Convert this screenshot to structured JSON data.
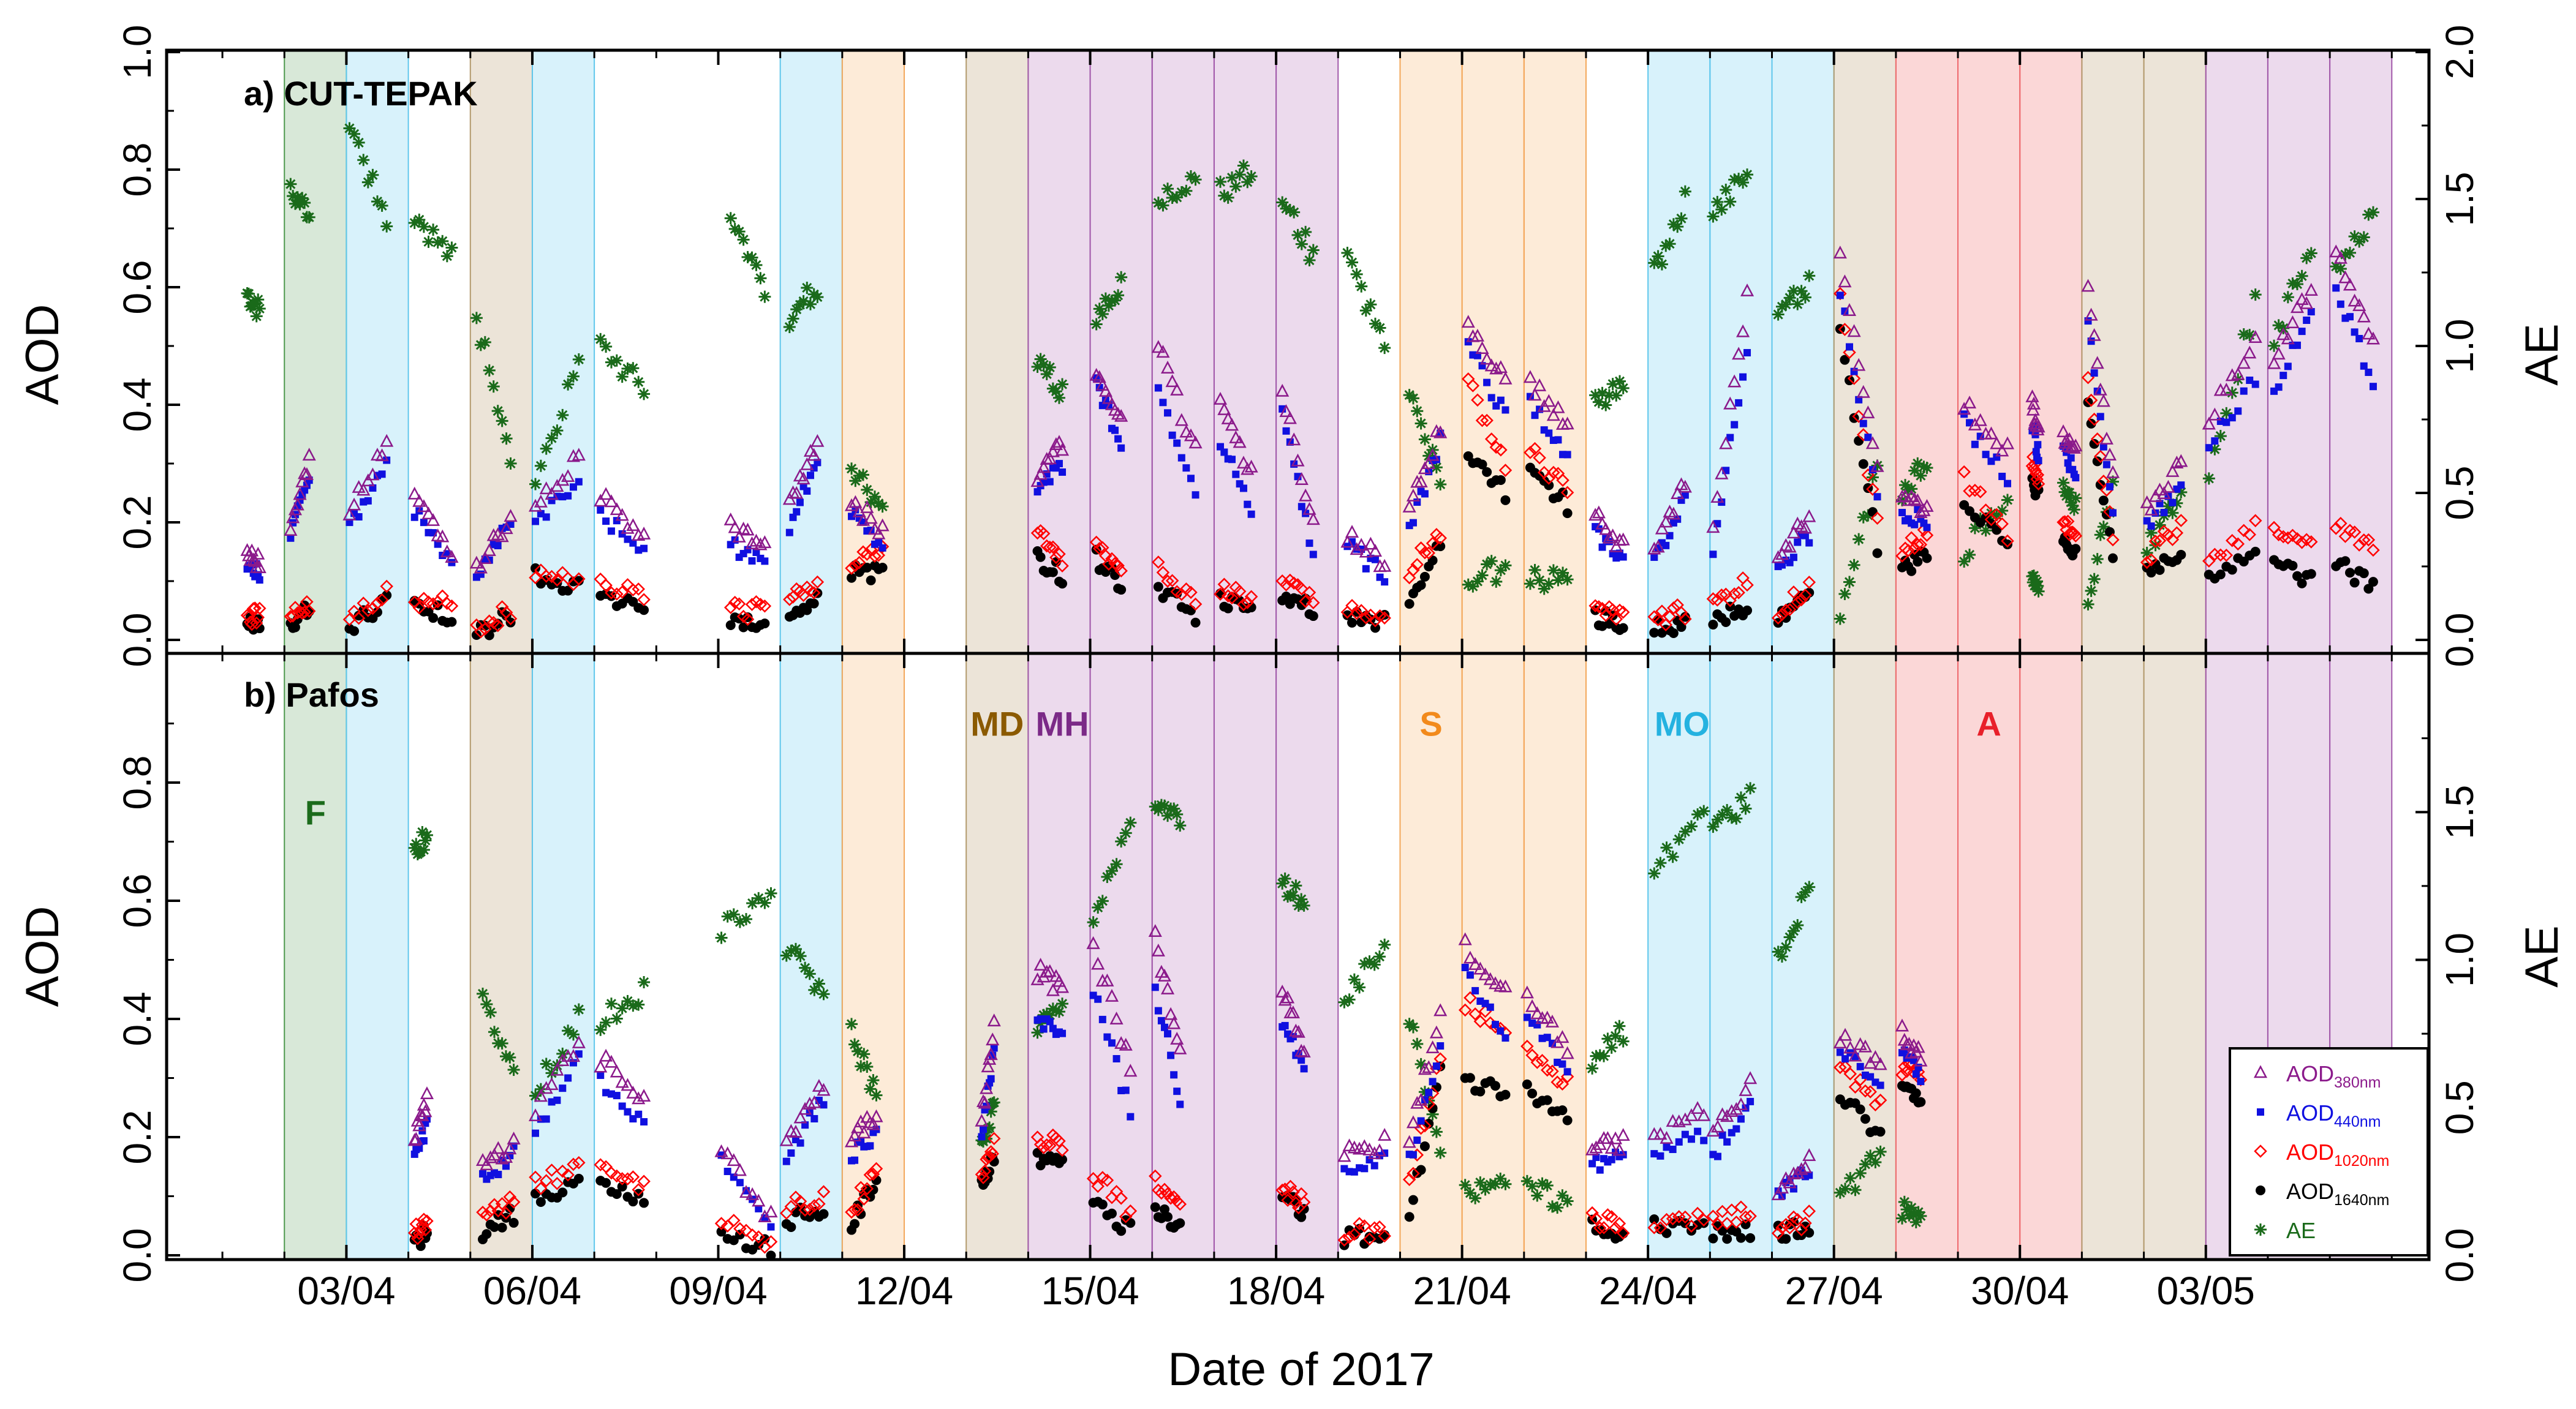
{
  "chart_data": {
    "type": "scatter",
    "xlabel": "Date of 2017",
    "x_ticks": [
      "03/04",
      "06/04",
      "09/04",
      "12/04",
      "15/04",
      "18/04",
      "21/04",
      "24/04",
      "27/04",
      "30/04",
      "03/05"
    ],
    "x_tick_days": [
      3,
      6,
      9,
      12,
      15,
      18,
      21,
      24,
      27,
      30,
      33
    ],
    "x_range_days": [
      0.1,
      36.6
    ],
    "left_axis": {
      "label": "AOD",
      "range": [
        0,
        1.0
      ],
      "ticks": [
        "0.0",
        "0.2",
        "0.4",
        "0.6",
        "0.8",
        "1.0"
      ]
    },
    "right_axis": {
      "label": "AE",
      "range": [
        0,
        2.0
      ],
      "ticks": [
        "0.0",
        "0.5",
        "1.0",
        "1.5",
        "2.0"
      ]
    },
    "lower_left_ticks": [
      "0.0",
      "0.2",
      "0.4",
      "0.6",
      "0.8"
    ],
    "lower_right_ticks": [
      "0.0",
      "0.5",
      "1.0",
      "1.5"
    ],
    "panels": [
      {
        "title": "a) CUT-TEPAK"
      },
      {
        "title": "b) Pafos"
      }
    ],
    "categories": [
      {
        "code": "F",
        "name": "F",
        "color": "#1b6b1b",
        "fill": "#d8e8d8",
        "edge": "#4e9a4e"
      },
      {
        "code": "MO",
        "name": "MO",
        "color": "#24b2e0",
        "fill": "#d8f2fb",
        "edge": "#5fc7ec"
      },
      {
        "code": "MD",
        "name": "MD",
        "color": "#8b5a00",
        "fill": "#ece4d8",
        "edge": "#b39a6e"
      },
      {
        "code": "S",
        "name": "S",
        "color": "#f28a1c",
        "fill": "#fdebd8",
        "edge": "#f3a75a"
      },
      {
        "code": "MH",
        "name": "MH",
        "color": "#7b2a87",
        "fill": "#ecdaed",
        "edge": "#a25aab"
      },
      {
        "code": "A",
        "name": "A",
        "color": "#e8202a",
        "fill": "#fbd7d7",
        "edge": "#ef6b6f"
      }
    ],
    "bands": [
      {
        "start": 2.0,
        "end": 3.0,
        "type": "F"
      },
      {
        "start": 3.0,
        "end": 4.0,
        "type": "MO"
      },
      {
        "start": 5.0,
        "end": 6.0,
        "type": "MD"
      },
      {
        "start": 6.0,
        "end": 7.0,
        "type": "MO"
      },
      {
        "start": 10.0,
        "end": 11.0,
        "type": "MO"
      },
      {
        "start": 11.0,
        "end": 12.0,
        "type": "S"
      },
      {
        "start": 13.0,
        "end": 14.0,
        "type": "MD"
      },
      {
        "start": 14.0,
        "end": 15.0,
        "type": "MH"
      },
      {
        "start": 15.0,
        "end": 16.0,
        "type": "MH"
      },
      {
        "start": 16.0,
        "end": 17.0,
        "type": "MH"
      },
      {
        "start": 17.0,
        "end": 18.0,
        "type": "MH"
      },
      {
        "start": 18.0,
        "end": 19.0,
        "type": "MH"
      },
      {
        "start": 20.0,
        "end": 21.0,
        "type": "S"
      },
      {
        "start": 21.0,
        "end": 22.0,
        "type": "S"
      },
      {
        "start": 22.0,
        "end": 23.0,
        "type": "S"
      },
      {
        "start": 24.0,
        "end": 25.0,
        "type": "MO"
      },
      {
        "start": 25.0,
        "end": 26.0,
        "type": "MO"
      },
      {
        "start": 26.0,
        "end": 27.0,
        "type": "MO"
      },
      {
        "start": 27.0,
        "end": 28.0,
        "type": "MD"
      },
      {
        "start": 28.0,
        "end": 29.0,
        "type": "A"
      },
      {
        "start": 29.0,
        "end": 30.0,
        "type": "A"
      },
      {
        "start": 30.0,
        "end": 31.0,
        "type": "A"
      },
      {
        "start": 31.0,
        "end": 32.0,
        "type": "MD"
      },
      {
        "start": 32.0,
        "end": 33.0,
        "type": "MD"
      },
      {
        "start": 33.0,
        "end": 34.0,
        "type": "MH"
      },
      {
        "start": 34.0,
        "end": 35.0,
        "type": "MH"
      },
      {
        "start": 35.0,
        "end": 36.0,
        "type": "MH"
      }
    ],
    "band_labels": [
      {
        "text": "F",
        "day": 2.5,
        "aod": 0.75,
        "type": "F"
      },
      {
        "text": "MD",
        "day": 13.5,
        "aod": 0.9,
        "type": "MD"
      },
      {
        "text": "MH",
        "day": 14.55,
        "aod": 0.9,
        "type": "MH"
      },
      {
        "text": "S",
        "day": 20.5,
        "aod": 0.9,
        "type": "S"
      },
      {
        "text": "MO",
        "day": 24.55,
        "aod": 0.9,
        "type": "MO"
      },
      {
        "text": "A",
        "day": 29.5,
        "aod": 0.9,
        "type": "A"
      }
    ],
    "series": [
      {
        "name": "AOD",
        "sub": "380nm",
        "marker": "triangle",
        "color": "#8b1a8b",
        "axis": "left"
      },
      {
        "name": "AOD",
        "sub": "440nm",
        "marker": "square",
        "color": "#1010e0",
        "axis": "left"
      },
      {
        "name": "AOD",
        "sub": "1020nm",
        "marker": "diamond",
        "color": "#ff0000",
        "axis": "left"
      },
      {
        "name": "AOD",
        "sub": "1640nm",
        "marker": "circle",
        "color": "#000000",
        "axis": "left"
      },
      {
        "name": "AE",
        "sub": "",
        "marker": "asterisk",
        "color": "#1a6a1a",
        "axis": "right"
      }
    ],
    "observations": {
      "columns": [
        "day_start",
        "day_end",
        "aod380_start",
        "aod380_end",
        "aod440_start",
        "aod440_end",
        "aod1020_start",
        "aod1020_end",
        "aod1640_start",
        "aod1640_end",
        "ae_start",
        "ae_end"
      ],
      "cut_tepak": [
        [
          1.4,
          1.6,
          0.15,
          0.13,
          0.13,
          0.11,
          0.04,
          0.04,
          0.03,
          0.03,
          1.18,
          1.12
        ],
        [
          2.1,
          2.4,
          0.2,
          0.3,
          0.18,
          0.27,
          0.04,
          0.06,
          0.03,
          0.05,
          1.52,
          1.46
        ],
        [
          3.05,
          3.65,
          0.22,
          0.34,
          0.19,
          0.31,
          0.03,
          0.09,
          0.02,
          0.07,
          1.78,
          1.4
        ],
        [
          4.1,
          4.7,
          0.25,
          0.13,
          0.22,
          0.12,
          0.07,
          0.06,
          0.06,
          0.04,
          1.45,
          1.3
        ],
        [
          5.1,
          5.65,
          0.12,
          0.21,
          0.11,
          0.2,
          0.02,
          0.05,
          0.01,
          0.04,
          1.1,
          0.6
        ],
        [
          6.05,
          6.75,
          0.22,
          0.31,
          0.19,
          0.28,
          0.12,
          0.1,
          0.11,
          0.09,
          0.55,
          0.95
        ],
        [
          7.1,
          7.8,
          0.24,
          0.18,
          0.21,
          0.16,
          0.1,
          0.07,
          0.08,
          0.05,
          1.0,
          0.85
        ],
        [
          9.2,
          9.75,
          0.19,
          0.17,
          0.16,
          0.14,
          0.05,
          0.05,
          0.04,
          0.03,
          1.45,
          1.2
        ],
        [
          10.15,
          10.6,
          0.23,
          0.34,
          0.19,
          0.31,
          0.07,
          0.09,
          0.05,
          0.07,
          1.1,
          1.2
        ],
        [
          11.15,
          11.65,
          0.24,
          0.18,
          0.22,
          0.16,
          0.13,
          0.15,
          0.12,
          0.11,
          0.6,
          0.45
        ],
        [
          14.15,
          14.55,
          0.28,
          0.33,
          0.25,
          0.3,
          0.19,
          0.14,
          0.14,
          0.11,
          0.95,
          0.85
        ],
        [
          15.1,
          15.5,
          0.46,
          0.38,
          0.44,
          0.33,
          0.16,
          0.11,
          0.14,
          0.09,
          1.1,
          1.2
        ],
        [
          16.1,
          16.7,
          0.5,
          0.32,
          0.42,
          0.24,
          0.12,
          0.07,
          0.09,
          0.04,
          1.5,
          1.58
        ],
        [
          17.1,
          17.6,
          0.42,
          0.28,
          0.34,
          0.22,
          0.09,
          0.07,
          0.07,
          0.05,
          1.52,
          1.6
        ],
        [
          18.1,
          18.6,
          0.42,
          0.2,
          0.38,
          0.15,
          0.1,
          0.07,
          0.08,
          0.05,
          1.5,
          1.3
        ],
        [
          19.15,
          19.75,
          0.18,
          0.13,
          0.16,
          0.11,
          0.05,
          0.04,
          0.04,
          0.03,
          1.3,
          1.0
        ],
        [
          20.15,
          20.65,
          0.22,
          0.36,
          0.18,
          0.34,
          0.12,
          0.18,
          0.06,
          0.17,
          0.85,
          0.55
        ],
        [
          21.1,
          21.7,
          0.53,
          0.44,
          0.5,
          0.38,
          0.44,
          0.3,
          0.32,
          0.25,
          0.2,
          0.25
        ],
        [
          22.1,
          22.7,
          0.44,
          0.36,
          0.4,
          0.32,
          0.32,
          0.26,
          0.28,
          0.23,
          0.22,
          0.2
        ],
        [
          23.15,
          23.6,
          0.21,
          0.16,
          0.18,
          0.14,
          0.05,
          0.04,
          0.04,
          0.03,
          0.8,
          0.85
        ],
        [
          24.1,
          24.6,
          0.15,
          0.27,
          0.13,
          0.24,
          0.03,
          0.05,
          0.02,
          0.03,
          1.25,
          1.5
        ],
        [
          25.05,
          25.6,
          0.2,
          0.58,
          0.16,
          0.5,
          0.06,
          0.1,
          0.03,
          0.06,
          1.45,
          1.58
        ],
        [
          26.1,
          26.6,
          0.14,
          0.21,
          0.12,
          0.18,
          0.05,
          0.09,
          0.03,
          0.08,
          1.1,
          1.2
        ],
        [
          27.1,
          27.7,
          0.65,
          0.28,
          0.6,
          0.24,
          0.58,
          0.2,
          0.52,
          0.16,
          0.05,
          0.6
        ],
        [
          28.1,
          28.5,
          0.25,
          0.22,
          0.22,
          0.2,
          0.15,
          0.18,
          0.12,
          0.15,
          0.5,
          0.62
        ],
        [
          29.1,
          29.8,
          0.4,
          0.32,
          0.37,
          0.28,
          0.28,
          0.18,
          0.24,
          0.15,
          0.3,
          0.5
        ],
        [
          30.2,
          30.3,
          0.4,
          0.35,
          0.37,
          0.31,
          0.3,
          0.28,
          0.27,
          0.25,
          0.2,
          0.2
        ],
        [
          30.7,
          30.9,
          0.35,
          0.32,
          0.32,
          0.28,
          0.2,
          0.18,
          0.17,
          0.15,
          0.55,
          0.45
        ],
        [
          31.1,
          31.5,
          0.6,
          0.27,
          0.54,
          0.22,
          0.45,
          0.17,
          0.4,
          0.15,
          0.15,
          0.5
        ],
        [
          32.05,
          32.6,
          0.22,
          0.3,
          0.2,
          0.26,
          0.14,
          0.2,
          0.12,
          0.15,
          0.3,
          0.5
        ],
        [
          33.05,
          33.8,
          0.38,
          0.5,
          0.34,
          0.44,
          0.14,
          0.19,
          0.11,
          0.15,
          0.55,
          1.15
        ],
        [
          34.1,
          34.7,
          0.48,
          0.6,
          0.43,
          0.55,
          0.18,
          0.16,
          0.13,
          0.1,
          1.0,
          1.35
        ],
        [
          35.1,
          35.7,
          0.66,
          0.5,
          0.6,
          0.44,
          0.2,
          0.16,
          0.13,
          0.09,
          1.25,
          1.45
        ]
      ],
      "pafos": [
        [
          4.1,
          4.3,
          0.2,
          0.26,
          0.16,
          0.22,
          0.04,
          0.05,
          0.02,
          0.04,
          1.38,
          1.42
        ],
        [
          5.2,
          5.7,
          0.15,
          0.19,
          0.13,
          0.17,
          0.06,
          0.09,
          0.04,
          0.07,
          0.85,
          0.65
        ],
        [
          6.05,
          6.75,
          0.24,
          0.36,
          0.21,
          0.33,
          0.12,
          0.15,
          0.1,
          0.12,
          0.55,
          0.8
        ],
        [
          7.1,
          7.8,
          0.33,
          0.27,
          0.29,
          0.22,
          0.15,
          0.12,
          0.12,
          0.1,
          0.8,
          0.9
        ],
        [
          9.05,
          9.85,
          0.18,
          0.06,
          0.16,
          0.04,
          0.06,
          0.02,
          0.04,
          0.01,
          1.1,
          1.25
        ],
        [
          10.1,
          10.7,
          0.2,
          0.29,
          0.17,
          0.26,
          0.08,
          0.1,
          0.06,
          0.08,
          1.05,
          0.9
        ],
        [
          11.15,
          11.55,
          0.2,
          0.24,
          0.17,
          0.21,
          0.07,
          0.15,
          0.05,
          0.13,
          0.75,
          0.55
        ],
        [
          13.25,
          13.45,
          0.23,
          0.39,
          0.21,
          0.34,
          0.13,
          0.19,
          0.12,
          0.17,
          0.35,
          0.5
        ],
        [
          14.15,
          14.55,
          0.48,
          0.45,
          0.4,
          0.38,
          0.19,
          0.19,
          0.16,
          0.16,
          0.75,
          0.85
        ],
        [
          15.05,
          15.65,
          0.53,
          0.32,
          0.45,
          0.24,
          0.14,
          0.07,
          0.1,
          0.04,
          1.1,
          1.5
        ],
        [
          16.05,
          16.45,
          0.54,
          0.34,
          0.45,
          0.27,
          0.12,
          0.08,
          0.08,
          0.05,
          1.55,
          1.45
        ],
        [
          18.1,
          18.45,
          0.45,
          0.34,
          0.4,
          0.31,
          0.11,
          0.09,
          0.1,
          0.07,
          1.25,
          1.2
        ],
        [
          19.1,
          19.75,
          0.17,
          0.19,
          0.14,
          0.17,
          0.04,
          0.04,
          0.03,
          0.03,
          0.85,
          1.05
        ],
        [
          20.15,
          20.65,
          0.2,
          0.4,
          0.16,
          0.34,
          0.12,
          0.34,
          0.06,
          0.32,
          0.8,
          0.35
        ],
        [
          21.05,
          21.7,
          0.52,
          0.44,
          0.48,
          0.38,
          0.43,
          0.37,
          0.3,
          0.27,
          0.2,
          0.25
        ],
        [
          22.05,
          22.7,
          0.43,
          0.35,
          0.4,
          0.32,
          0.34,
          0.29,
          0.28,
          0.24,
          0.22,
          0.18
        ],
        [
          23.1,
          23.6,
          0.18,
          0.19,
          0.15,
          0.17,
          0.06,
          0.05,
          0.05,
          0.04,
          0.65,
          0.75
        ],
        [
          24.1,
          24.9,
          0.2,
          0.24,
          0.18,
          0.2,
          0.06,
          0.06,
          0.05,
          0.05,
          1.3,
          1.5
        ],
        [
          25.05,
          25.65,
          0.2,
          0.29,
          0.17,
          0.25,
          0.06,
          0.07,
          0.04,
          0.04,
          1.45,
          1.55
        ],
        [
          26.1,
          26.6,
          0.11,
          0.17,
          0.1,
          0.14,
          0.05,
          0.06,
          0.04,
          0.05,
          1.0,
          1.25
        ],
        [
          27.1,
          27.75,
          0.37,
          0.32,
          0.35,
          0.3,
          0.32,
          0.26,
          0.27,
          0.2,
          0.2,
          0.35
        ],
        [
          28.1,
          28.4,
          0.38,
          0.33,
          0.35,
          0.3,
          0.32,
          0.3,
          0.28,
          0.26,
          0.15,
          0.15
        ]
      ]
    }
  }
}
